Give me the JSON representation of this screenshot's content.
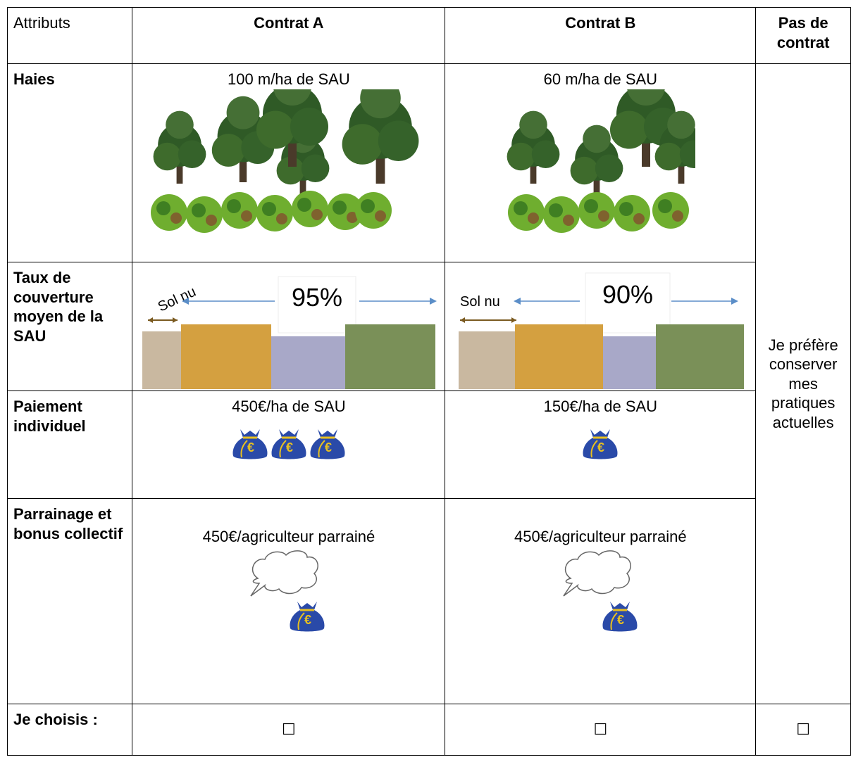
{
  "table": {
    "header": [
      "Attributs",
      "Contrat A",
      "Contrat B",
      "Pas de contrat"
    ],
    "rows": [
      {
        "label": "Haies",
        "contract_a": "100 m/ha de SAU",
        "contract_b": "60 m/ha de SAU"
      },
      {
        "label": "Taux de couverture moyen de la SAU",
        "contract_a": {
          "soil": "Sol nu",
          "rate": "95%"
        },
        "contract_b": {
          "soil": "Sol nu",
          "rate": "90%"
        }
      },
      {
        "label": "Paiement individuel",
        "contract_a": "450€/ha de SAU",
        "contract_b": "150€/ha de SAU"
      },
      {
        "label": "Parrainage et bonus collectif",
        "contract_a": "450€/agriculteur parrainé",
        "contract_b": "450€/agriculteur parrainé"
      }
    ],
    "no_contract": "Je préfère conserver mes pratiques actuelles",
    "choice": {
      "label": "Je choisis :",
      "boxes": [
        "☐",
        "☐",
        "☐"
      ]
    }
  }
}
